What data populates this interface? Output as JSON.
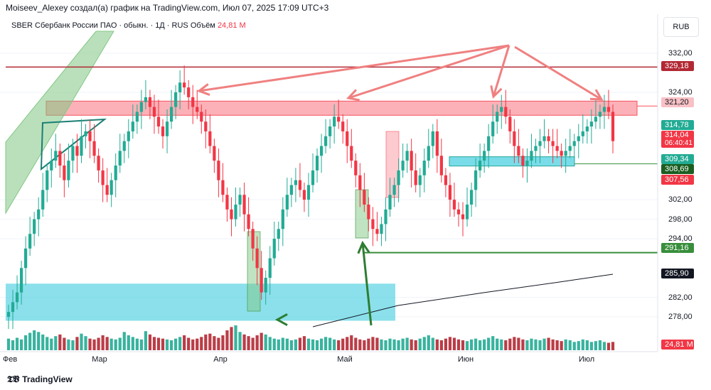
{
  "header": {
    "attribution": "Moiseev_Alexey создал(а) график на TradingView.com, Июл 07, 2025 17:09 UTC+3",
    "symbol": "SBER",
    "description": "Сбербанк России ПАО · обыкн. · 1Д · RUS",
    "volume_label": "Объём",
    "volume_value": "24,81 М"
  },
  "currency_button": "RUB",
  "brand": "TradingView",
  "colors": {
    "up": "#22ab94",
    "down": "#f23645",
    "resistance": "#f7525f",
    "support_line": "#388e3c",
    "dark_red": "#b22833",
    "cyan_zone": "#4dd0e1",
    "green_channel": "#81c784",
    "black_line": "#131722"
  },
  "chart_data": {
    "type": "candlestick",
    "symbol": "SBER",
    "timeframe": "1Д",
    "y_axis": {
      "ticks": [
        "332,00",
        "324,00",
        "302,00",
        "298,00",
        "294,00",
        "282,00",
        "278,00"
      ],
      "range": [
        275,
        335
      ]
    },
    "x_axis": {
      "labels": [
        "Фев",
        "Мар",
        "Апр",
        "Май",
        "Июн",
        "Июл"
      ]
    },
    "price_labels": [
      {
        "value": "329,18",
        "color": "#b22833"
      },
      {
        "value": "321,20",
        "color": "#f7525f"
      },
      {
        "value": "314,78",
        "color": "#22ab94"
      },
      {
        "value": "314,04",
        "color": "#f23645",
        "note": "06:40:41"
      },
      {
        "value": "309,34",
        "color": "#22ab94"
      },
      {
        "value": "308,69",
        "color": "#1b5e20"
      },
      {
        "value": "307,56",
        "color": "#f23645"
      },
      {
        "value": "291,16",
        "color": "#388e3c"
      },
      {
        "value": "285,90",
        "color": "#131722"
      },
      {
        "value": "24,81 М",
        "color": "#f23645"
      }
    ],
    "horizontal_levels": [
      329.18,
      321.2,
      309.34,
      291.16
    ],
    "zones": [
      {
        "name": "resistance",
        "from": 319.3,
        "to": 322.2
      },
      {
        "name": "support-june",
        "from": 308.9,
        "to": 310.8
      },
      {
        "name": "support-low",
        "from": 277.2,
        "to": 284.8
      }
    ],
    "close": [
      279,
      281,
      283,
      288,
      292,
      295,
      298,
      300,
      304,
      308,
      310,
      312,
      309,
      306,
      310,
      313,
      311,
      315,
      316,
      314,
      311,
      308,
      305,
      303,
      306,
      309,
      312,
      314,
      316,
      318,
      320,
      322,
      323,
      321,
      319,
      317,
      315,
      318,
      321,
      324,
      326,
      325,
      323,
      321,
      320,
      318,
      316,
      313,
      310,
      306,
      303,
      300,
      298,
      301,
      303,
      299,
      296,
      292,
      288,
      283,
      286,
      290,
      294,
      296,
      300,
      303,
      305,
      306,
      304,
      302,
      305,
      308,
      311,
      313,
      315,
      317,
      319,
      318,
      316,
      313,
      310,
      307,
      304,
      301,
      298,
      296,
      295,
      297,
      300,
      303,
      305,
      308,
      310,
      312,
      308,
      305,
      307,
      310,
      313,
      316,
      311,
      307,
      305,
      302,
      300,
      299,
      298,
      301,
      304,
      308,
      310,
      312,
      315,
      318,
      320,
      321,
      319,
      316,
      313,
      311,
      309,
      310,
      312,
      313,
      314,
      315,
      314,
      313,
      312,
      311,
      312,
      313,
      314,
      315,
      316,
      317,
      318,
      319,
      320,
      321,
      320,
      314
    ],
    "volume": [
      1.4,
      1.2,
      1.5,
      1.3,
      1.8,
      2.1,
      2.4,
      2.2,
      1.9,
      1.6,
      1.4,
      1.7,
      1.9,
      1.5,
      1.3,
      1.2,
      1.6,
      2.0,
      1.7,
      1.4,
      1.3,
      1.5,
      1.8,
      1.6,
      1.4,
      1.3,
      1.5,
      2.2,
      1.8,
      1.6,
      1.4,
      1.3,
      2.3,
      1.9,
      1.6,
      1.5,
      1.4,
      1.3,
      1.2,
      1.4,
      1.6,
      1.8,
      1.5,
      1.3,
      1.4,
      1.6,
      1.9,
      2.0,
      1.7,
      1.5,
      1.8,
      2.4,
      2.8,
      3.0,
      2.2,
      1.9,
      1.7,
      1.5,
      1.8,
      2.1,
      1.9,
      1.6,
      1.4,
      1.3,
      1.5,
      1.4,
      1.2,
      1.3,
      1.5,
      1.7,
      1.4,
      1.3,
      1.2,
      1.4,
      1.6,
      1.5,
      1.3,
      1.2,
      1.4,
      1.6,
      1.8,
      1.5,
      1.3,
      1.2,
      1.4,
      1.6,
      1.5,
      1.3,
      1.2,
      1.4,
      1.3,
      1.2,
      1.4,
      1.5,
      1.3,
      1.2,
      1.4,
      1.6,
      1.8,
      1.5,
      1.3,
      1.2,
      1.4,
      1.6,
      1.5,
      1.3,
      1.2,
      1.1,
      1.3,
      1.4,
      1.2,
      1.3,
      1.5,
      1.7,
      1.4,
      1.3,
      1.2,
      1.4,
      1.6,
      1.5,
      1.3,
      1.2,
      1.4,
      1.3,
      1.2,
      1.4,
      1.5,
      1.3,
      1.2,
      1.1,
      1.3,
      1.2,
      1.0,
      1.1,
      1.3,
      1.2,
      1.0,
      1.1,
      1.2,
      1.0,
      0.9,
      1.0
    ]
  }
}
